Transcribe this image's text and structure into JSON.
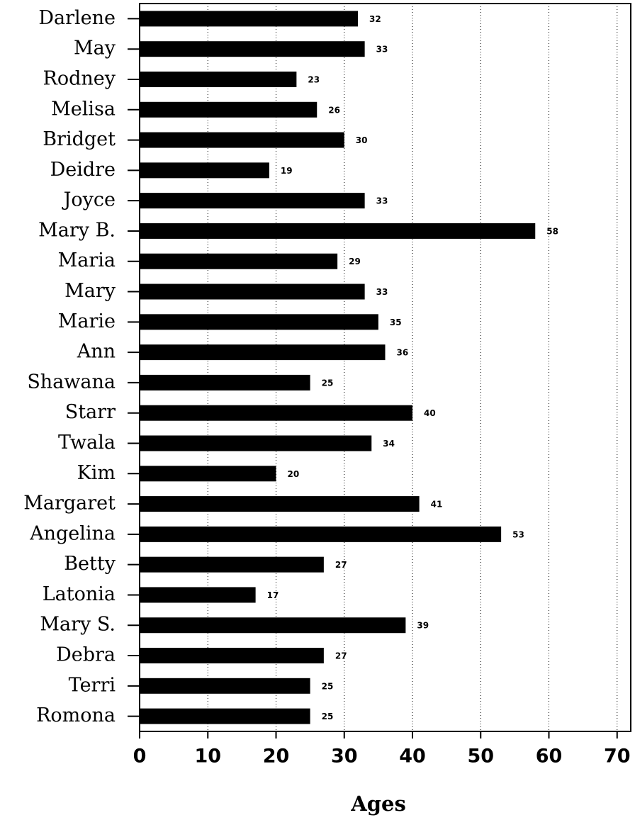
{
  "chart_data": {
    "type": "barh",
    "categories": [
      "Darlene",
      "May",
      "Rodney",
      "Melisa",
      "Bridget",
      "Deidre",
      "Joyce",
      "Mary B.",
      "Maria",
      "Mary",
      "Marie",
      "Ann",
      "Shawana",
      "Starr",
      "Twala",
      "Kim",
      "Margaret",
      "Angelina",
      "Betty",
      "Latonia",
      "Mary S.",
      "Debra",
      "Terri",
      "Romona"
    ],
    "values": [
      32,
      33,
      23,
      26,
      30,
      19,
      33,
      58,
      29,
      33,
      35,
      36,
      25,
      40,
      34,
      20,
      41,
      53,
      27,
      17,
      39,
      27,
      25,
      25
    ],
    "color": "#000000",
    "xlabel": "Ages",
    "xlim": [
      0,
      72
    ],
    "xticks": [
      0,
      10,
      20,
      30,
      40,
      50,
      60,
      70
    ],
    "grid": true
  }
}
